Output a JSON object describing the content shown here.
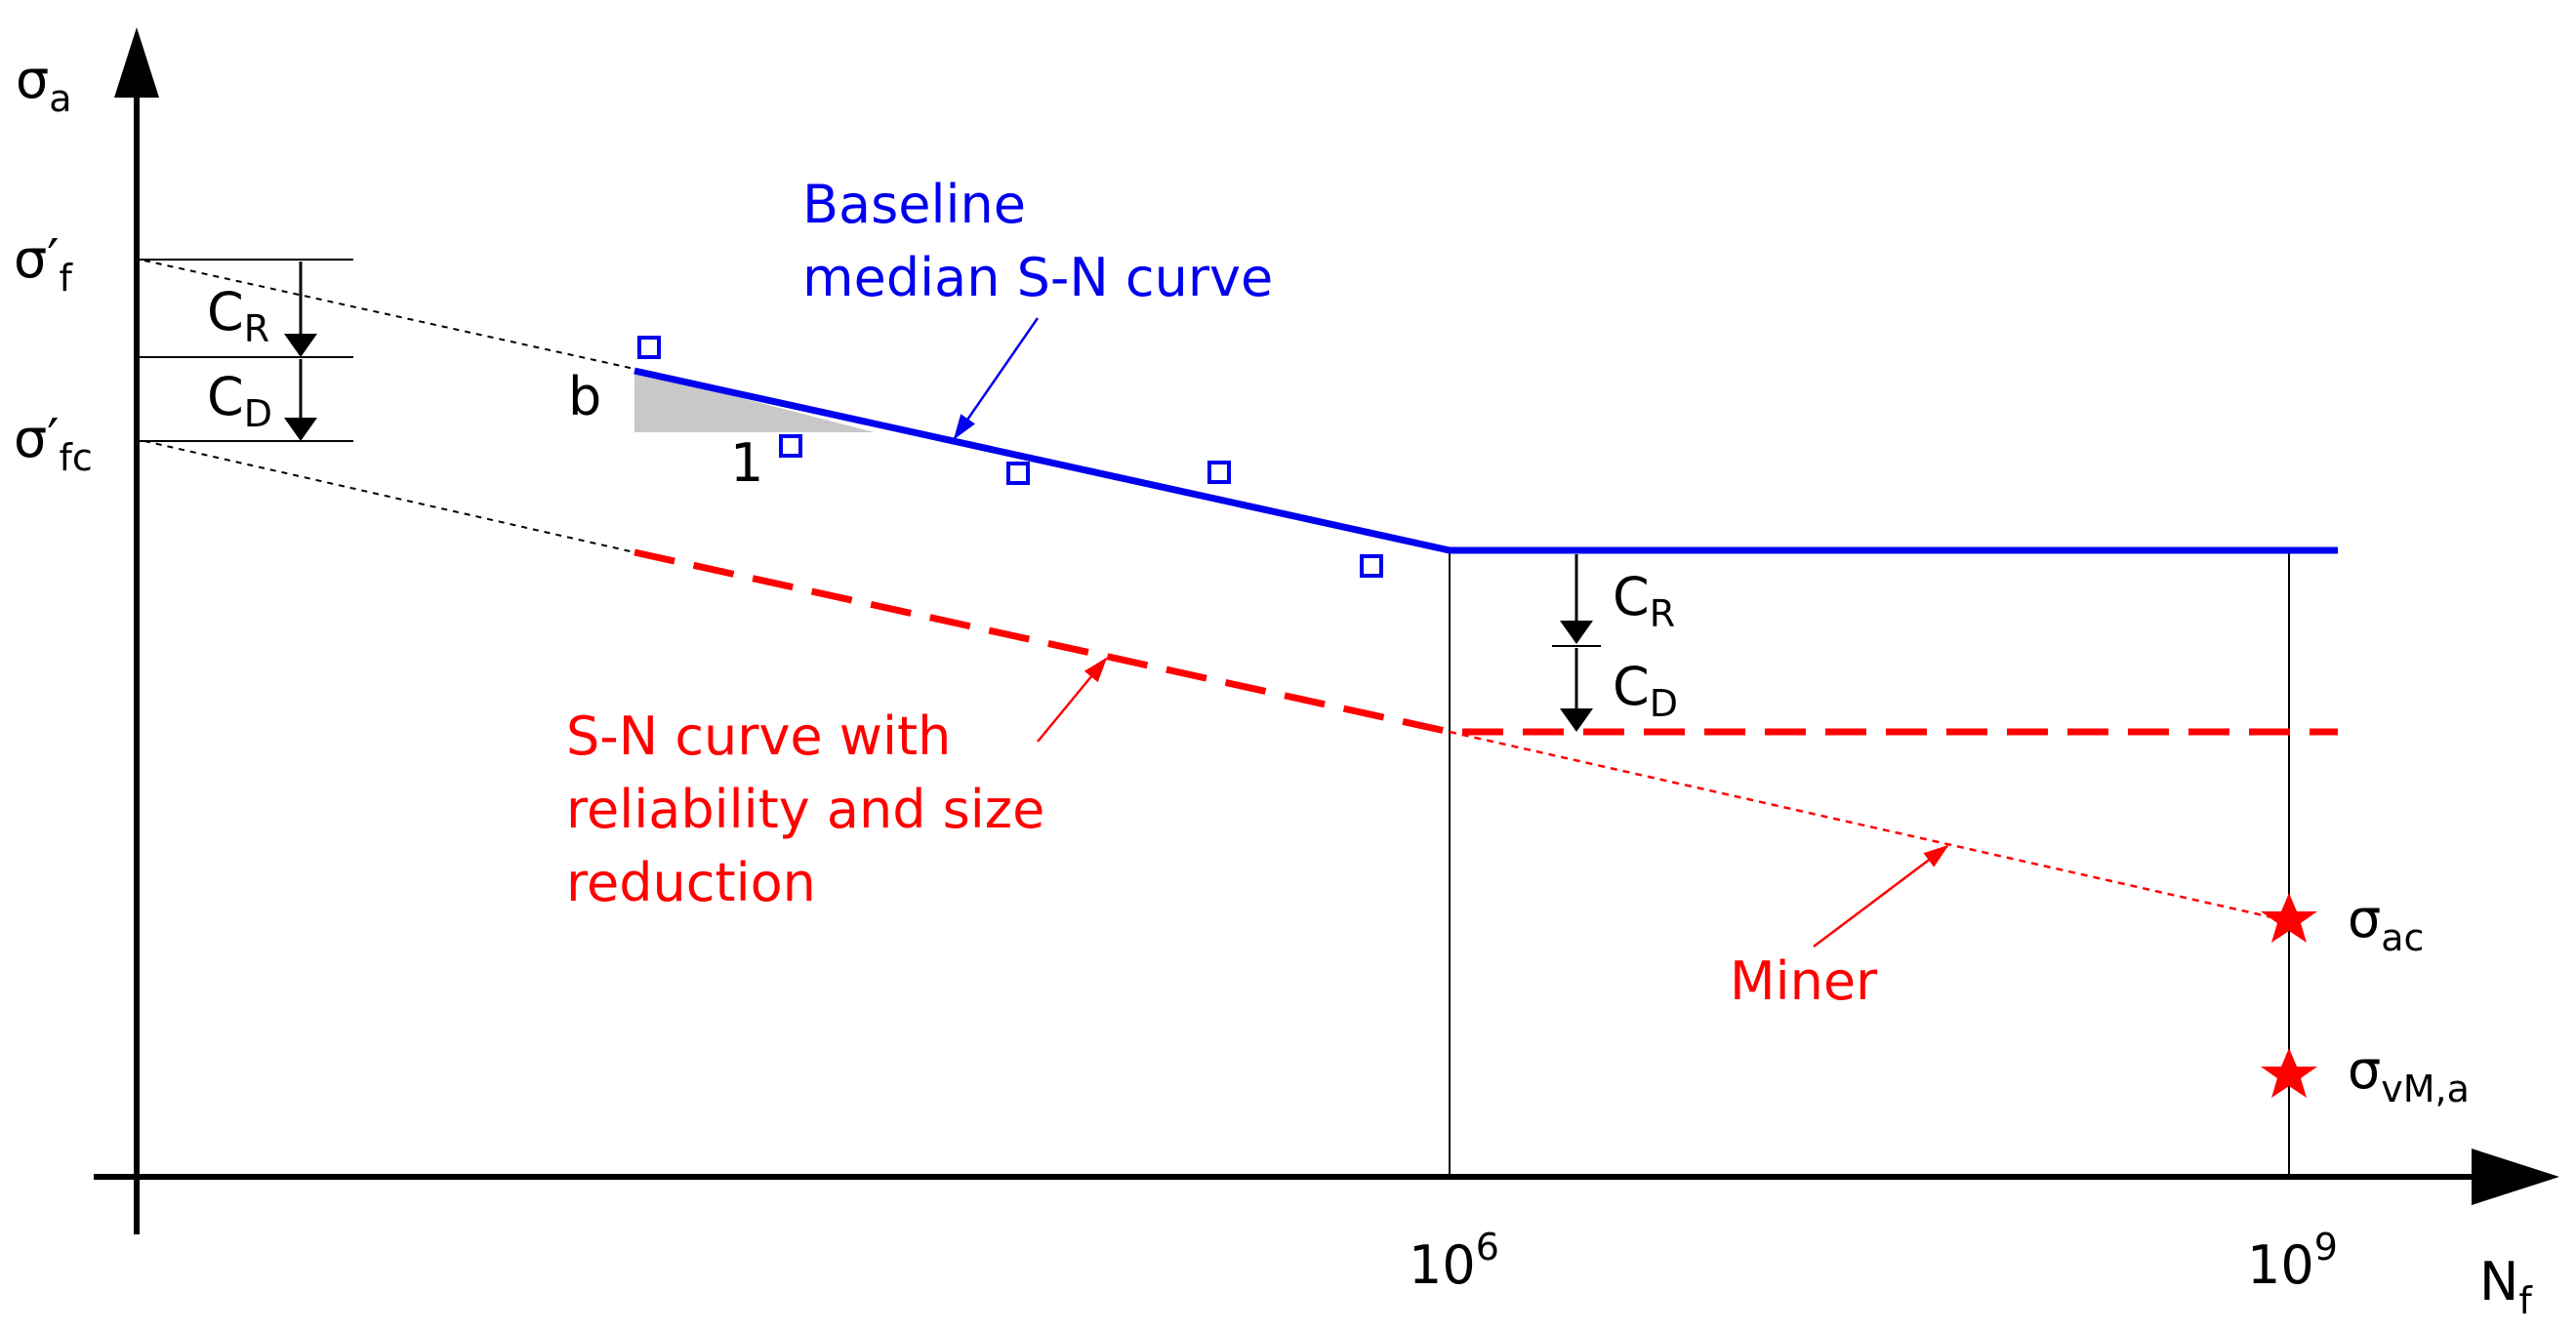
{
  "axes": {
    "y_label": "σ",
    "y_label_sub": "a",
    "x_label": "N",
    "x_label_sub": "f"
  },
  "y_ticks": {
    "sigma_f": {
      "base": "σ′",
      "sub": "f"
    },
    "sigma_fc": {
      "base": "σ′",
      "sub": "fc"
    }
  },
  "x_ticks": {
    "n_1e6": {
      "base": "10",
      "sup": "6"
    },
    "n_1e9": {
      "base": "10",
      "sup": "9"
    }
  },
  "left_factors": {
    "cr": {
      "base": "C",
      "sub": "R"
    },
    "cd": {
      "base": "C",
      "sub": "D"
    }
  },
  "right_factors": {
    "cr": {
      "base": "C",
      "sub": "R"
    },
    "cd": {
      "base": "C",
      "sub": "D"
    }
  },
  "slope_triangle": {
    "b": "b",
    "one": "1"
  },
  "annotations": {
    "baseline_line1": "Baseline",
    "baseline_line2": "median S-N curve",
    "reduced_line1": "S-N curve with",
    "reduced_line2": "reliability and size",
    "reduced_line3": "reduction",
    "miner": "Miner"
  },
  "stars": {
    "sigma_ac": {
      "base": "σ",
      "sub": "ac"
    },
    "sigma_vm": {
      "base": "σ",
      "sub": "vM,a"
    }
  },
  "colors": {
    "baseline": "#0000ee",
    "reduced": "#ff0000",
    "axis": "#000000",
    "triangle_fill": "#c8c8c8"
  }
}
